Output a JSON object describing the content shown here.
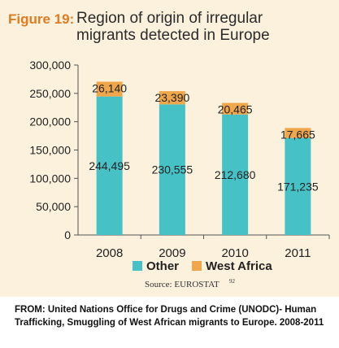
{
  "figure": {
    "label": "Figure 19:",
    "title": "Region of origin of irregular migrants detected in Europe"
  },
  "source": {
    "text": "Source: EUROSTAT",
    "superscript": "92"
  },
  "credit": "FROM: United Nations Office for Drugs and Crime (UNODC)- Human Trafficking, Smuggling of West African migrants to Europe. 2008-2011",
  "colors": {
    "other": "#46c2c6",
    "west_africa": "#f0a74c",
    "panel": "#fbf1dc",
    "accent": "#e07b1f"
  },
  "chart_data": {
    "type": "bar",
    "stacked": true,
    "categories": [
      "2008",
      "2009",
      "2010",
      "2011"
    ],
    "series": [
      {
        "name": "Other",
        "values": [
          244495,
          230555,
          212680,
          171235
        ],
        "labels": [
          "244,495",
          "230,555",
          "212,680",
          "171,235"
        ]
      },
      {
        "name": "West Africa",
        "values": [
          26140,
          23390,
          20465,
          17665
        ],
        "labels": [
          "26,140",
          "23,390",
          "20,465",
          "17,665"
        ]
      }
    ],
    "ylim": [
      0,
      300000
    ],
    "yticks": [
      0,
      50000,
      100000,
      150000,
      200000,
      250000,
      300000
    ],
    "ytick_labels": [
      "0",
      "50,000",
      "100,000",
      "150,000",
      "200,000",
      "250,000",
      "300,000"
    ],
    "legend_position": "bottom",
    "grid": false
  }
}
